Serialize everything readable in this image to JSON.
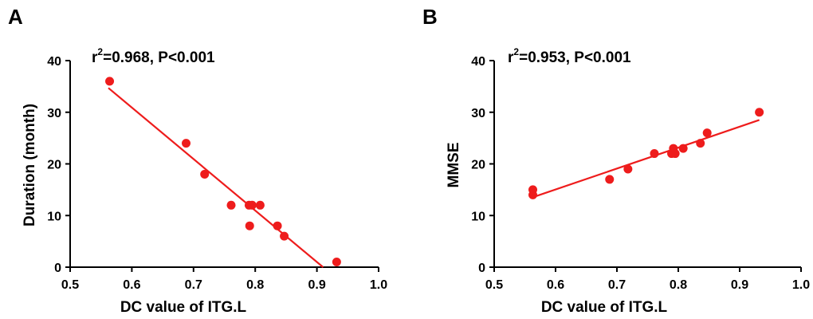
{
  "chart_data": [
    {
      "type": "scatter",
      "panel_label": "A",
      "stat_prefix": "r",
      "stat_exp": "2",
      "stat_rest": "=0.968, P<0.001",
      "xlabel": "DC value of ITG.L",
      "ylabel": "Duration (month)",
      "xlim": [
        0.5,
        1.0
      ],
      "ylim": [
        0,
        40
      ],
      "xticks": [
        "0.5",
        "0.6",
        "0.7",
        "0.8",
        "0.9",
        "1.0"
      ],
      "yticks": [
        "0",
        "10",
        "20",
        "30",
        "40"
      ],
      "point_color": "#ee1c1c",
      "line_color": "#ee1c1c",
      "points": [
        {
          "x": 0.564,
          "y": 36
        },
        {
          "x": 0.688,
          "y": 24
        },
        {
          "x": 0.718,
          "y": 18
        },
        {
          "x": 0.761,
          "y": 12
        },
        {
          "x": 0.79,
          "y": 12
        },
        {
          "x": 0.795,
          "y": 12
        },
        {
          "x": 0.791,
          "y": 8
        },
        {
          "x": 0.808,
          "y": 12
        },
        {
          "x": 0.836,
          "y": 8
        },
        {
          "x": 0.847,
          "y": 6
        },
        {
          "x": 0.932,
          "y": 1
        }
      ],
      "fit_line": {
        "x1": 0.562,
        "y1": 34.7,
        "x2": 0.91,
        "y2": 0
      }
    },
    {
      "type": "scatter",
      "panel_label": "B",
      "stat_prefix": "r",
      "stat_exp": "2",
      "stat_rest": "=0.953, P<0.001",
      "xlabel": "DC value of ITG.L",
      "ylabel": "MMSE",
      "xlim": [
        0.5,
        1.0
      ],
      "ylim": [
        0,
        40
      ],
      "xticks": [
        "0.5",
        "0.6",
        "0.7",
        "0.8",
        "0.9",
        "1.0"
      ],
      "yticks": [
        "0",
        "10",
        "20",
        "30",
        "40"
      ],
      "point_color": "#ee1c1c",
      "line_color": "#ee1c1c",
      "points": [
        {
          "x": 0.563,
          "y": 15
        },
        {
          "x": 0.563,
          "y": 14
        },
        {
          "x": 0.688,
          "y": 17
        },
        {
          "x": 0.718,
          "y": 19
        },
        {
          "x": 0.761,
          "y": 22
        },
        {
          "x": 0.789,
          "y": 22
        },
        {
          "x": 0.792,
          "y": 23
        },
        {
          "x": 0.795,
          "y": 22
        },
        {
          "x": 0.808,
          "y": 23
        },
        {
          "x": 0.836,
          "y": 24
        },
        {
          "x": 0.847,
          "y": 26
        },
        {
          "x": 0.932,
          "y": 30
        }
      ],
      "fit_line": {
        "x1": 0.562,
        "y1": 13.5,
        "x2": 0.932,
        "y2": 28.5
      }
    }
  ]
}
